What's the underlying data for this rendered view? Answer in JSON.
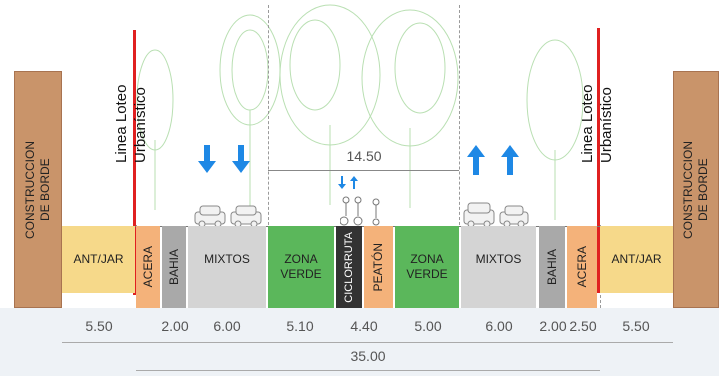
{
  "colors": {
    "building": "#c9946a",
    "antjar": "#f6d98a",
    "acera": "#f4b27a",
    "bahia": "#a9a9a9",
    "mixtos": "#d4d4d4",
    "zona_verde": "#5bb75b",
    "ciclorruta": "#333333",
    "peaton": "#f4b27a",
    "lot_line": "#e02020",
    "arrow": "#1e88e5"
  },
  "buildings": {
    "left": "CONSTRUCCION\nDE BORDE",
    "right": "CONSTRUCCION\nDE BORDE"
  },
  "lot_line": {
    "left": "Linea Loteo\nUrbanístico",
    "right": "Linea Loteo\nUrbanístico"
  },
  "segments": [
    {
      "label": "ANT/JAR",
      "width": "5.50"
    },
    {
      "label": "ACERA",
      "width": "2.00"
    },
    {
      "label": "BAHIA",
      "width": ""
    },
    {
      "label": "MIXTOS",
      "width": "6.00"
    },
    {
      "label": "ZONA\nVERDE",
      "width": "5.10"
    },
    {
      "label": "CICLORRUTA",
      "width": ""
    },
    {
      "label": "PEATÓN",
      "width": "4.40"
    },
    {
      "label": "ZONA\nVERDE",
      "width": "5.00"
    },
    {
      "label": "MIXTOS",
      "width": "6.00"
    },
    {
      "label": "BAHIA",
      "width": "2.00"
    },
    {
      "label": "ACERA",
      "width": "2.50"
    },
    {
      "label": "ANT/JAR",
      "width": "5.50"
    }
  ],
  "median_width": "14.50",
  "total_width": "35.00",
  "icons": [
    "arrow-down-icon",
    "arrow-up-icon",
    "tree-icon",
    "car-icon",
    "cyclist-icon"
  ]
}
